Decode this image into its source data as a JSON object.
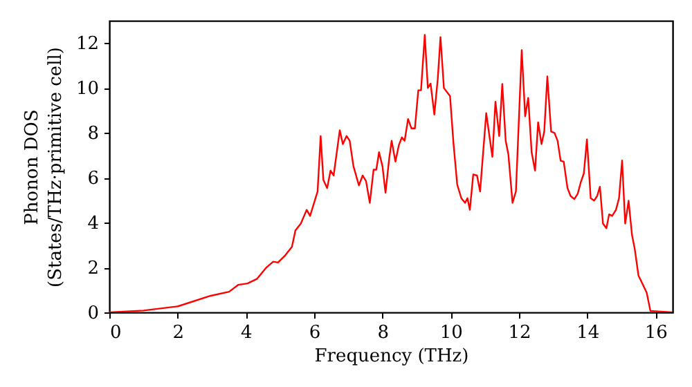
{
  "chart_data": {
    "type": "line",
    "xlabel": "Frequency (THz)",
    "ylabel": "Phonon DOS\n(States/THz·primitive cell)",
    "xlim": [
      0,
      16.5
    ],
    "ylim": [
      0,
      13
    ],
    "xticks": [
      0,
      2,
      4,
      6,
      8,
      10,
      12,
      14,
      16
    ],
    "yticks": [
      0,
      2,
      4,
      6,
      8,
      10,
      12
    ],
    "grid": false,
    "marker": "none",
    "line_style": "solid",
    "x": [
      0,
      1,
      2.01,
      2.97,
      3.51,
      3.78,
      4.05,
      4.33,
      4.6,
      4.8,
      4.94,
      5.14,
      5.35,
      5.45,
      5.61,
      5.78,
      5.88,
      6.1,
      6.19,
      6.27,
      6.38,
      6.48,
      6.57,
      6.75,
      6.84,
      6.95,
      7.04,
      7.15,
      7.31,
      7.42,
      7.52,
      7.63,
      7.74,
      7.82,
      7.9,
      8.0,
      8.09,
      8.2,
      8.27,
      8.38,
      8.48,
      8.57,
      8.65,
      8.75,
      8.85,
      8.95,
      9.05,
      9.13,
      9.24,
      9.33,
      9.41,
      9.52,
      9.62,
      9.7,
      9.8,
      9.98,
      10.08,
      10.19,
      10.31,
      10.42,
      10.49,
      10.56,
      10.66,
      10.77,
      10.86,
      11.04,
      11.22,
      11.31,
      11.42,
      11.51,
      11.61,
      11.69,
      11.81,
      11.91,
      12.08,
      12.18,
      12.27,
      12.37,
      12.47,
      12.56,
      12.66,
      12.74,
      12.83,
      12.94,
      13.04,
      13.13,
      13.22,
      13.31,
      13.42,
      13.51,
      13.62,
      13.72,
      13.81,
      13.9,
      13.99,
      14.1,
      14.2,
      14.29,
      14.37,
      14.46,
      14.56,
      14.64,
      14.73,
      14.84,
      14.93,
      15.02,
      15.11,
      15.21,
      15.31,
      15.39,
      15.5,
      15.63,
      15.74,
      15.85,
      16.5
    ],
    "series": [
      {
        "color": "#ff0000",
        "values": [
          0,
          0.08,
          0.27,
          0.74,
          0.92,
          1.23,
          1.29,
          1.5,
          2.0,
          2.26,
          2.22,
          2.52,
          2.93,
          3.65,
          3.96,
          4.57,
          4.3,
          5.39,
          7.86,
          5.9,
          5.54,
          6.32,
          6.1,
          8.12,
          7.5,
          7.86,
          7.65,
          6.52,
          5.66,
          6.1,
          5.85,
          4.88,
          6.36,
          6.36,
          7.14,
          6.52,
          5.33,
          6.89,
          7.65,
          6.72,
          7.45,
          7.8,
          7.65,
          8.62,
          8.2,
          8.2,
          9.9,
          9.9,
          12.37,
          10.0,
          10.2,
          8.82,
          10.4,
          12.27,
          10.0,
          9.64,
          7.55,
          5.7,
          5.09,
          4.88,
          5.09,
          4.57,
          6.15,
          6.1,
          5.39,
          8.88,
          6.93,
          9.39,
          7.86,
          10.18,
          7.65,
          7.03,
          4.88,
          5.39,
          11.69,
          8.74,
          9.56,
          7.14,
          6.32,
          8.47,
          7.5,
          8.06,
          10.52,
          8.06,
          8.0,
          7.65,
          6.76,
          6.72,
          5.54,
          5.19,
          5.05,
          5.29,
          5.8,
          6.2,
          7.71,
          5.09,
          4.98,
          5.19,
          5.6,
          3.96,
          3.75,
          4.37,
          4.3,
          4.57,
          5.09,
          6.77,
          3.96,
          4.98,
          3.45,
          2.83,
          1.64,
          1.23,
          0.88,
          0.06,
          0
        ]
      }
    ]
  }
}
